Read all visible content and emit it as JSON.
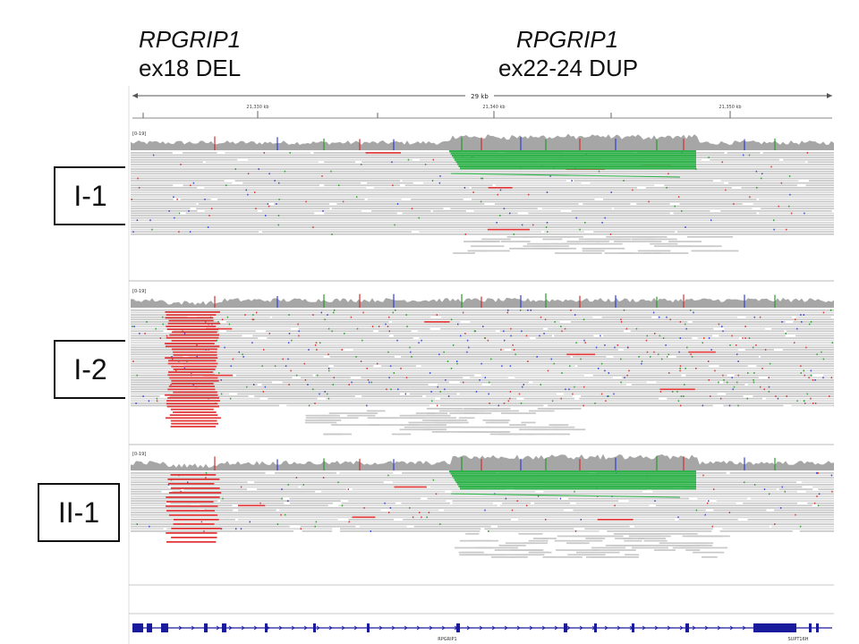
{
  "headers": {
    "left": {
      "gene": "RPGRIP1",
      "variant": "ex18 DEL"
    },
    "right": {
      "gene": "RPGRIP1",
      "variant": "ex22-24 DUP"
    }
  },
  "ruler": {
    "span_label": "29 kb",
    "ticks": [
      "21,330 kb",
      "21,340 kb",
      "21,350 kb"
    ]
  },
  "samples": [
    {
      "id": "I-1",
      "range": "[0-19]",
      "has_deletion": false,
      "has_duplication": true
    },
    {
      "id": "I-2",
      "range": "[0-19]",
      "has_deletion": true,
      "has_duplication": false
    },
    {
      "id": "II-1",
      "range": "[0-19]",
      "has_deletion": true,
      "has_duplication": true
    }
  ],
  "genes": [
    "RPGRIP1",
    "SUPT16H"
  ],
  "colors": {
    "read": "#c8c8c8",
    "coverage": "#a6a6a6",
    "deletion_reads": "#e03a3a",
    "duplication_pairs": "#2fb34a",
    "gene_track": "#1a1a9c",
    "mismatch_blue": "#3340d0",
    "mismatch_red": "#d23030",
    "mismatch_green": "#2a9a2a"
  }
}
